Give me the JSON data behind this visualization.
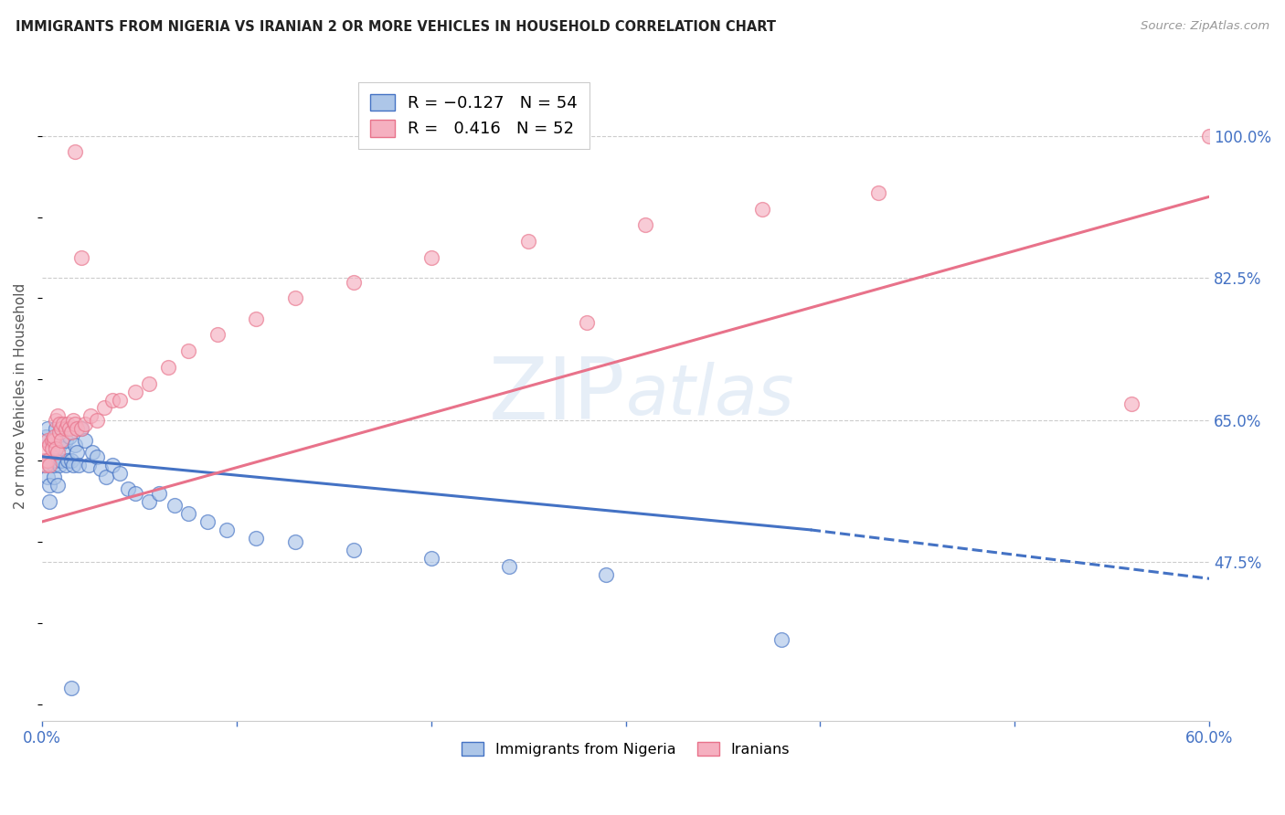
{
  "title": "IMMIGRANTS FROM NIGERIA VS IRANIAN 2 OR MORE VEHICLES IN HOUSEHOLD CORRELATION CHART",
  "source": "Source: ZipAtlas.com",
  "ylabel": "2 or more Vehicles in Household",
  "ytick_labels": [
    "100.0%",
    "82.5%",
    "65.0%",
    "47.5%"
  ],
  "ytick_values": [
    1.0,
    0.825,
    0.65,
    0.475
  ],
  "xmin": 0.0,
  "xmax": 0.6,
  "ymin": 0.28,
  "ymax": 1.08,
  "nigeria_R": -0.127,
  "nigeria_N": 54,
  "iran_R": 0.416,
  "iran_N": 52,
  "nigeria_color": "#adc6e8",
  "iran_color": "#f5b0c0",
  "nigeria_line_color": "#4472c4",
  "iran_line_color": "#e8728a",
  "legend_label_nigeria": "Immigrants from Nigeria",
  "legend_label_iran": "Iranians",
  "nigeria_x": [
    0.001,
    0.002,
    0.002,
    0.003,
    0.003,
    0.004,
    0.004,
    0.005,
    0.005,
    0.006,
    0.006,
    0.007,
    0.007,
    0.008,
    0.008,
    0.009,
    0.009,
    0.01,
    0.01,
    0.011,
    0.012,
    0.012,
    0.013,
    0.014,
    0.015,
    0.016,
    0.017,
    0.018,
    0.019,
    0.02,
    0.022,
    0.024,
    0.026,
    0.028,
    0.03,
    0.033,
    0.036,
    0.04,
    0.044,
    0.048,
    0.055,
    0.06,
    0.068,
    0.075,
    0.085,
    0.095,
    0.11,
    0.13,
    0.16,
    0.2,
    0.24,
    0.29,
    0.015,
    0.38
  ],
  "nigeria_y": [
    0.595,
    0.6,
    0.63,
    0.58,
    0.64,
    0.55,
    0.57,
    0.6,
    0.62,
    0.58,
    0.595,
    0.6,
    0.64,
    0.57,
    0.6,
    0.62,
    0.595,
    0.6,
    0.64,
    0.615,
    0.625,
    0.595,
    0.6,
    0.63,
    0.6,
    0.595,
    0.62,
    0.61,
    0.595,
    0.64,
    0.625,
    0.595,
    0.61,
    0.605,
    0.59,
    0.58,
    0.595,
    0.585,
    0.565,
    0.56,
    0.55,
    0.56,
    0.545,
    0.535,
    0.525,
    0.515,
    0.505,
    0.5,
    0.49,
    0.48,
    0.47,
    0.46,
    0.32,
    0.38
  ],
  "iran_x": [
    0.001,
    0.002,
    0.002,
    0.003,
    0.003,
    0.004,
    0.004,
    0.005,
    0.005,
    0.006,
    0.006,
    0.007,
    0.007,
    0.008,
    0.008,
    0.009,
    0.009,
    0.01,
    0.01,
    0.011,
    0.012,
    0.013,
    0.014,
    0.015,
    0.016,
    0.017,
    0.018,
    0.02,
    0.022,
    0.025,
    0.028,
    0.032,
    0.036,
    0.04,
    0.048,
    0.055,
    0.065,
    0.075,
    0.09,
    0.11,
    0.13,
    0.16,
    0.2,
    0.25,
    0.31,
    0.37,
    0.43,
    0.017,
    0.02,
    0.6,
    0.56,
    0.28
  ],
  "iran_y": [
    0.6,
    0.595,
    0.615,
    0.625,
    0.6,
    0.62,
    0.595,
    0.625,
    0.615,
    0.625,
    0.63,
    0.615,
    0.65,
    0.655,
    0.61,
    0.635,
    0.645,
    0.64,
    0.625,
    0.645,
    0.64,
    0.645,
    0.64,
    0.635,
    0.65,
    0.645,
    0.64,
    0.64,
    0.645,
    0.655,
    0.65,
    0.665,
    0.675,
    0.675,
    0.685,
    0.695,
    0.715,
    0.735,
    0.755,
    0.775,
    0.8,
    0.82,
    0.85,
    0.87,
    0.89,
    0.91,
    0.93,
    0.98,
    0.85,
    1.0,
    0.67,
    0.77
  ],
  "nigeria_line_x0": 0.0,
  "nigeria_line_x_solid_end": 0.395,
  "nigeria_line_x1": 0.6,
  "nigeria_line_y0": 0.605,
  "nigeria_line_y_solid_end": 0.515,
  "nigeria_line_y1": 0.455,
  "iran_line_x0": 0.0,
  "iran_line_x1": 0.6,
  "iran_line_y0": 0.525,
  "iran_line_y1": 0.925
}
